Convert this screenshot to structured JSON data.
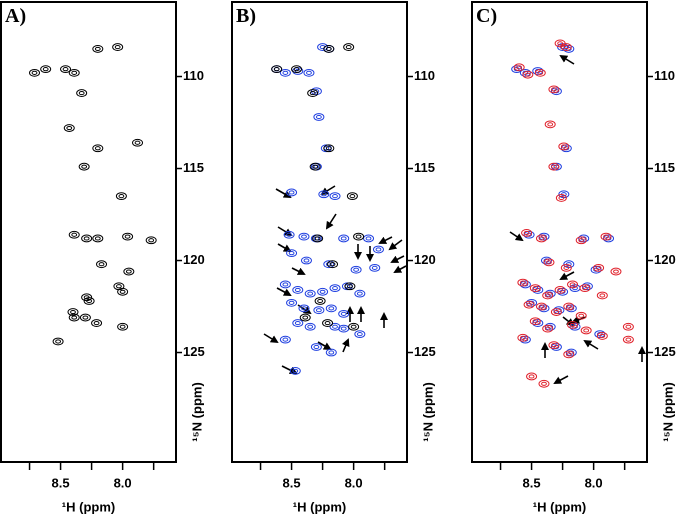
{
  "chart_data": [
    {
      "type": "scatter",
      "title": "A)",
      "x_label": "¹H (ppm)",
      "y_label": "¹⁵N (ppm)",
      "xlim": [
        8.98,
        7.57
      ],
      "ylim": [
        105.95,
        130.95
      ],
      "xticks": [
        8.5,
        {
          "value": 8,
          "label": "8.0"
        }
      ],
      "xminor": [
        8.75,
        8.25,
        7.75
      ],
      "yticks": [
        110,
        115,
        120,
        125
      ],
      "series": [
        {
          "color": "#000000",
          "x": [
            8.2,
            8.04,
            8.71,
            8.62,
            8.46,
            8.39,
            8.33,
            8.43,
            8.2,
            7.88,
            8.31,
            8.01,
            8.39,
            8.29,
            8.2,
            7.96,
            7.77,
            8.17,
            7.95,
            8.03,
            8.0,
            8.29,
            8.27,
            8.4,
            8.39,
            8.3,
            8.21,
            8.0,
            8.52
          ],
          "y": [
            108.5,
            108.4,
            109.8,
            109.6,
            109.6,
            109.8,
            110.9,
            112.8,
            113.9,
            113.6,
            114.9,
            116.5,
            118.6,
            118.8,
            118.8,
            118.7,
            118.9,
            120.2,
            120.6,
            121.4,
            121.7,
            122.0,
            122.2,
            122.8,
            123.1,
            123.1,
            123.4,
            123.6,
            124.4
          ]
        }
      ]
    },
    {
      "type": "scatter",
      "title": "B)",
      "x_label": "¹H (ppm)",
      "y_label": "¹⁵N (ppm)",
      "xlim": [
        8.98,
        7.57
      ],
      "ylim": [
        105.95,
        130.95
      ],
      "xticks": [
        8.5,
        {
          "value": 8,
          "label": "8.0"
        }
      ],
      "xminor": [
        8.75,
        8.25,
        7.75
      ],
      "yticks": [
        110,
        115,
        120,
        125
      ],
      "series": [
        {
          "color": "#2040e0",
          "x": [
            8.62,
            8.55,
            8.45,
            8.36,
            8.25,
            8.2,
            8.3,
            8.28,
            8.22,
            8.3,
            8.5,
            8.24,
            8.15,
            8.52,
            8.4,
            8.3,
            8.08,
            7.88,
            7.8,
            8.5,
            8.38,
            8.2,
            7.98,
            7.83,
            8.55,
            8.45,
            8.35,
            8.25,
            8.15,
            8.05,
            7.95,
            8.5,
            8.4,
            8.28,
            8.18,
            8.08,
            8.45,
            8.35,
            8.15,
            8.08,
            7.95,
            8.55,
            8.3,
            8.18,
            8.47
          ],
          "y": [
            109.6,
            109.8,
            109.7,
            109.8,
            108.4,
            108.5,
            110.8,
            112.2,
            113.9,
            114.9,
            116.3,
            116.4,
            116.5,
            118.6,
            118.7,
            118.8,
            118.8,
            118.8,
            119.4,
            119.6,
            120.0,
            120.2,
            120.5,
            120.4,
            121.3,
            121.6,
            121.8,
            121.7,
            121.5,
            121.4,
            121.8,
            122.3,
            122.6,
            122.7,
            122.6,
            122.9,
            123.4,
            123.6,
            123.6,
            123.7,
            124.0,
            124.3,
            124.7,
            125.0,
            126.0
          ]
        },
        {
          "color": "#000000",
          "x": [
            8.2,
            8.04,
            8.62,
            8.46,
            8.33,
            8.2,
            8.31,
            8.01,
            8.29,
            7.96,
            8.17,
            8.03,
            8.27,
            8.39,
            8.21,
            8.0
          ],
          "y": [
            108.5,
            108.4,
            109.6,
            109.6,
            110.9,
            113.9,
            114.9,
            116.5,
            118.8,
            118.7,
            120.2,
            121.4,
            122.2,
            123.1,
            123.4,
            123.6
          ]
        }
      ]
    },
    {
      "type": "scatter",
      "title": "C)",
      "x_label": "¹H (ppm)",
      "y_label": "¹⁵N (ppm)",
      "xlim": [
        8.98,
        7.57
      ],
      "ylim": [
        105.95,
        130.95
      ],
      "xticks": [
        8.5,
        {
          "value": 8,
          "label": "8.0"
        }
      ],
      "xminor": [
        8.75,
        8.25,
        7.75
      ],
      "yticks": [
        110,
        115,
        120,
        125
      ],
      "series": [
        {
          "color": "#2040e0",
          "x": [
            8.62,
            8.55,
            8.45,
            8.25,
            8.2,
            8.3,
            8.22,
            8.3,
            8.24,
            8.52,
            8.4,
            8.08,
            7.88,
            8.38,
            8.2,
            7.98,
            8.55,
            8.45,
            8.35,
            8.25,
            8.15,
            8.05,
            8.5,
            8.4,
            8.28,
            8.18,
            8.45,
            8.35,
            8.15,
            7.95,
            8.55,
            8.3,
            8.18
          ],
          "y": [
            109.6,
            109.8,
            109.7,
            108.4,
            108.5,
            110.8,
            113.9,
            114.9,
            116.4,
            118.6,
            118.7,
            118.8,
            118.8,
            120.0,
            120.2,
            120.5,
            121.3,
            121.6,
            121.8,
            121.7,
            121.5,
            121.4,
            122.3,
            122.6,
            122.7,
            122.6,
            123.4,
            123.6,
            123.6,
            124.0,
            124.3,
            124.7,
            125.0
          ]
        },
        {
          "color": "#e0202a",
          "x": [
            8.6,
            8.53,
            8.43,
            8.27,
            8.22,
            8.32,
            8.35,
            8.24,
            8.32,
            8.26,
            8.54,
            8.42,
            8.1,
            7.9,
            8.36,
            8.22,
            7.96,
            7.82,
            8.57,
            8.47,
            8.37,
            8.27,
            8.17,
            8.07,
            7.93,
            8.52,
            8.42,
            8.3,
            8.2,
            8.1,
            8.47,
            8.37,
            8.17,
            8.06,
            7.93,
            8.57,
            8.32,
            8.2,
            8.5,
            8.4,
            7.72,
            7.72
          ],
          "y": [
            109.5,
            109.9,
            109.8,
            108.2,
            108.4,
            110.7,
            112.6,
            113.8,
            114.9,
            116.6,
            118.5,
            118.8,
            118.9,
            118.7,
            120.1,
            120.4,
            120.4,
            120.6,
            121.2,
            121.5,
            121.9,
            121.6,
            121.3,
            121.5,
            121.9,
            122.4,
            122.5,
            122.8,
            122.5,
            123.0,
            123.3,
            123.7,
            123.5,
            123.8,
            124.1,
            124.2,
            124.6,
            125.1,
            126.3,
            126.7,
            123.6,
            124.3
          ]
        }
      ]
    }
  ]
}
